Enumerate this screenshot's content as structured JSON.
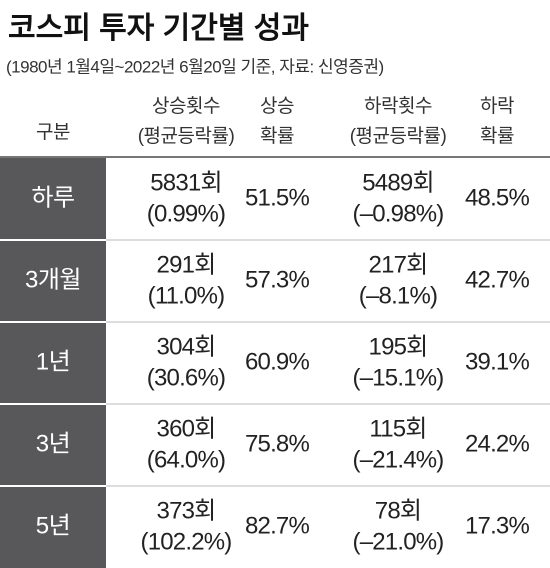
{
  "header": {
    "title": "코스피 투자 기간별 성과",
    "subtitle": "(1980년 1월4일~2022년 6월20일 기준, 자료: 신영증권)"
  },
  "table": {
    "columns": [
      [
        "구분"
      ],
      [
        "상승횟수",
        "(평균등락률)"
      ],
      [
        "상승",
        "확률"
      ],
      [
        "하락횟수",
        "(평균등락률)"
      ],
      [
        "하락",
        "확률"
      ]
    ],
    "rows": [
      [
        "하루",
        "5831회",
        "(0.99%)",
        "51.5%",
        "5489회",
        "(–0.98%)",
        "48.5%"
      ],
      [
        "3개월",
        "291회",
        "(11.0%)",
        "57.3%",
        "217회",
        "(–8.1%)",
        "42.7%"
      ],
      [
        "1년",
        "304회",
        "(30.6%)",
        "60.9%",
        "195회",
        "(–15.1%)",
        "39.1%"
      ],
      [
        "3년",
        "360회",
        "(64.0%)",
        "75.8%",
        "115회",
        "(–21.4%)",
        "24.2%"
      ],
      [
        "5년",
        "373회",
        "(102.2%)",
        "82.7%",
        "78회",
        "(–21.0%)",
        "17.3%"
      ]
    ]
  }
}
